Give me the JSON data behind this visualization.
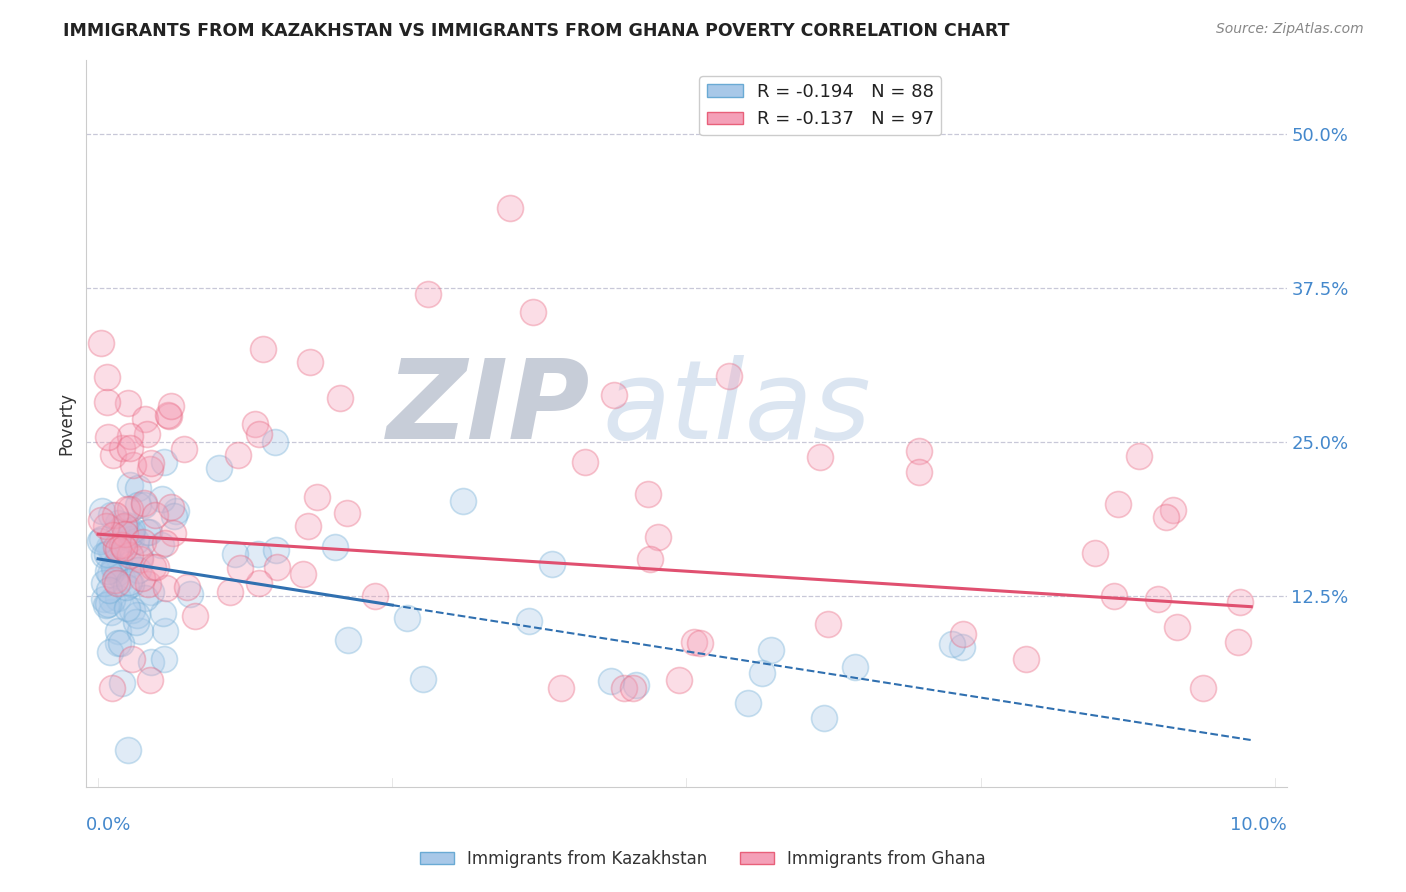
{
  "title": "IMMIGRANTS FROM KAZAKHSTAN VS IMMIGRANTS FROM GHANA POVERTY CORRELATION CHART",
  "source": "Source: ZipAtlas.com",
  "ylabel": "Poverty",
  "y_tick_vals": [
    0.125,
    0.25,
    0.375,
    0.5
  ],
  "y_tick_labels": [
    "12.5%",
    "25.0%",
    "37.5%",
    "50.0%"
  ],
  "xlim": [
    -0.001,
    0.101
  ],
  "ylim": [
    -0.03,
    0.56
  ],
  "kazakhstan_color": "#a8c8e8",
  "ghana_color": "#f4a0b8",
  "kazakhstan_edge": "#6aaad4",
  "ghana_edge": "#e8607a",
  "kazakhstan_R": -0.194,
  "kazakhstan_N": 88,
  "ghana_R": -0.137,
  "ghana_N": 97,
  "legend_label_1": "R = -0.194   N = 88",
  "legend_label_2": "R = -0.137   N = 97",
  "watermark_ZIP": "ZIP",
  "watermark_atlas": "atlas",
  "trendline_kaz_color": "#3070b0",
  "trendline_ghana_color": "#e05070",
  "grid_color": "#c8c8d8",
  "title_color": "#222222",
  "source_color": "#888888",
  "tick_color": "#4488cc",
  "bottom_legend_1": "Immigrants from Kazakhstan",
  "bottom_legend_2": "Immigrants from Ghana"
}
